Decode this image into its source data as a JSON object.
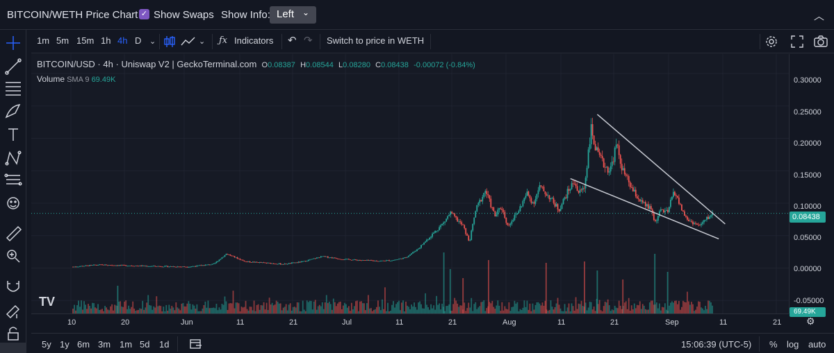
{
  "header": {
    "title": "BITCOIN/WETH Price Chart",
    "show_swaps_label": "Show Swaps",
    "show_swaps_checked": true,
    "show_info_label": "Show Info:",
    "show_info_value": "Left"
  },
  "toolbar": {
    "intervals": [
      "1m",
      "5m",
      "15m",
      "1h",
      "4h",
      "D"
    ],
    "active_interval": "4h",
    "indicators_label": "Indicators",
    "switch_label": "Switch to price in WETH"
  },
  "legend": {
    "symbol": "BITCOIN/USD",
    "sep1": "·",
    "interval": "4h",
    "sep2": "·",
    "source": "Uniswap V2 | GeckoTerminal.com",
    "o_label": "O",
    "o_value": "0.08387",
    "h_label": "H",
    "h_value": "0.08544",
    "l_label": "L",
    "l_value": "0.08280",
    "c_label": "C",
    "c_value": "0.08438",
    "change": "-0.00072 (-0.84%)",
    "volume_label": "Volume",
    "volume_sma": "SMA 9",
    "volume_value": "69.49K"
  },
  "y_axis": {
    "ticks": [
      "0.30000",
      "0.25000",
      "0.20000",
      "0.15000",
      "0.10000",
      "0.05000",
      "0.00000",
      "-0.05000"
    ],
    "current_price": "0.08438",
    "volume_tag": "69.49K"
  },
  "x_axis": {
    "ticks": [
      "10",
      "20",
      "Jun",
      "11",
      "21",
      "Jul",
      "11",
      "21",
      "Aug",
      "11",
      "21",
      "Sep",
      "11",
      "21"
    ]
  },
  "bottom": {
    "ranges": [
      "5y",
      "1y",
      "6m",
      "3m",
      "1m",
      "5d",
      "1d"
    ],
    "time": "15:06:39 (UTC-5)",
    "percent_label": "%",
    "log_label": "log",
    "auto_label": "auto"
  },
  "colors": {
    "up": "#26a69a",
    "down": "#ef5350",
    "accent": "#2962ff",
    "checkbox": "#7e57c2",
    "background": "#131722"
  },
  "icons": [
    "crosshair-icon",
    "trendline-icon",
    "fib-icon",
    "brush-icon",
    "text-icon",
    "pattern-icon",
    "prediction-icon",
    "emoji-icon",
    "ruler-icon",
    "zoom-icon",
    "magnet-icon",
    "lock-draw-icon",
    "lock-icon",
    "trash-icon",
    "settings-icon",
    "fullscreen-icon",
    "camera-icon",
    "undo-icon",
    "redo-icon",
    "candles-icon",
    "chart-type-icon",
    "indicators-icon",
    "date-range-icon"
  ],
  "chart_data": {
    "type": "candlestick",
    "ylim": [
      -0.07,
      0.33
    ],
    "x_range_labels": [
      "May 10",
      "Sep 21"
    ],
    "price_path": [
      [
        0.0,
        0.002
      ],
      [
        0.04,
        0.005
      ],
      [
        0.08,
        0.004
      ],
      [
        0.12,
        0.003
      ],
      [
        0.18,
        0.002
      ],
      [
        0.22,
        0.006
      ],
      [
        0.24,
        0.022
      ],
      [
        0.27,
        0.01
      ],
      [
        0.3,
        0.008
      ],
      [
        0.33,
        0.006
      ],
      [
        0.36,
        0.01
      ],
      [
        0.39,
        0.018
      ],
      [
        0.42,
        0.014
      ],
      [
        0.45,
        0.012
      ],
      [
        0.48,
        0.011
      ],
      [
        0.5,
        0.012
      ],
      [
        0.52,
        0.016
      ],
      [
        0.54,
        0.03
      ],
      [
        0.56,
        0.05
      ],
      [
        0.58,
        0.07
      ],
      [
        0.59,
        0.085
      ],
      [
        0.61,
        0.065
      ],
      [
        0.62,
        0.04
      ],
      [
        0.63,
        0.09
      ],
      [
        0.645,
        0.12
      ],
      [
        0.66,
        0.08
      ],
      [
        0.67,
        0.095
      ],
      [
        0.68,
        0.065
      ],
      [
        0.695,
        0.085
      ],
      [
        0.71,
        0.115
      ],
      [
        0.72,
        0.1
      ],
      [
        0.73,
        0.125
      ],
      [
        0.745,
        0.11
      ],
      [
        0.76,
        0.09
      ],
      [
        0.775,
        0.12
      ],
      [
        0.785,
        0.135
      ],
      [
        0.79,
        0.115
      ],
      [
        0.8,
        0.125
      ],
      [
        0.81,
        0.215
      ],
      [
        0.82,
        0.175
      ],
      [
        0.83,
        0.16
      ],
      [
        0.84,
        0.15
      ],
      [
        0.85,
        0.19
      ],
      [
        0.86,
        0.15
      ],
      [
        0.875,
        0.12
      ],
      [
        0.89,
        0.1
      ],
      [
        0.905,
        0.09
      ],
      [
        0.91,
        0.07
      ],
      [
        0.92,
        0.09
      ],
      [
        0.93,
        0.085
      ],
      [
        0.94,
        0.12
      ],
      [
        0.95,
        0.095
      ],
      [
        0.96,
        0.075
      ],
      [
        0.97,
        0.07
      ],
      [
        0.98,
        0.065
      ],
      [
        0.99,
        0.075
      ],
      [
        1.0,
        0.084
      ]
    ],
    "price_line": 0.08438,
    "trendlines": [
      {
        "from": [
          0.82,
          0.237
        ],
        "to": [
          1.02,
          0.068
        ]
      },
      {
        "from": [
          0.778,
          0.138
        ],
        "to": [
          1.01,
          0.045
        ]
      }
    ],
    "volume_spikes": [
      0.07,
      0.65,
      0.59,
      0.61,
      0.58,
      0.8,
      0.82,
      0.86,
      0.91,
      0.74,
      0.93
    ]
  }
}
